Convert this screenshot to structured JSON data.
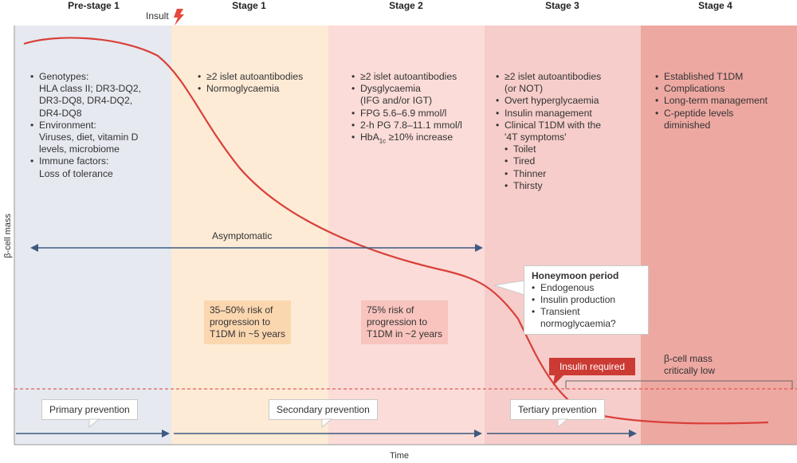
{
  "stages": [
    {
      "name": "Pre-stage 1",
      "color": "#e6e9f0"
    },
    {
      "name": "Stage 1",
      "color": "#fdebd6"
    },
    {
      "name": "Stage 2",
      "color": "#fbdcd8"
    },
    {
      "name": "Stage 3",
      "color": "#f6cdca"
    },
    {
      "name": "Stage 4",
      "color": "#eea8a2"
    }
  ],
  "insult_label": "Insult",
  "prestage_items": [
    "Genotypes:",
    "HLA class II; DR3-DQ2,",
    "DR3-DQ8, DR4-DQ2,",
    "DR4-DQ8",
    "Environment:",
    "Viruses, diet, vitamin D",
    "levels, microbiome",
    "Immune factors:",
    "Loss of tolerance"
  ],
  "stage1_items": [
    "≥2 islet autoantibodies",
    "Normoglycaemia"
  ],
  "stage2_items": [
    "≥2 islet autoantibodies",
    "Dysglycaemia",
    "(IFG and/or IGT)",
    "FPG 5.6–6.9 mmol/l",
    "2-h PG 7.8–11.1 mmol/l",
    "HbA",
    "1c",
    " ≥10% increase"
  ],
  "stage3_items": [
    "≥2 islet autoantibodies",
    "(or NOT)",
    "Overt hyperglycaemia",
    "Insulin management",
    "Clinical T1DM with the",
    "'4T symptoms'",
    "Toilet",
    "Tired",
    "Thinner",
    "Thirsty"
  ],
  "stage4_items": [
    "Established T1DM",
    "Complications",
    "Long-term management",
    "C-peptide levels",
    "diminished"
  ],
  "asymptomatic_label": "Asymptomatic",
  "risk1": [
    "35–50% risk of",
    "progression to",
    "T1DM in ~5 years"
  ],
  "risk2": [
    "75% risk of",
    "progression to",
    "T1DM in ~2 years"
  ],
  "honeymoon": {
    "title": "Honeymoon period",
    "items": [
      "Endogenous",
      "Insulin production",
      "Transient",
      "normoglycaemia?"
    ]
  },
  "insulin_required_label": "Insulin required",
  "critical_label": [
    "β-cell mass",
    "critically low"
  ],
  "prevention": {
    "primary": "Primary prevention",
    "secondary": "Secondary prevention",
    "tertiary": "Tertiary prevention"
  },
  "y_axis_label": "β-cell mass",
  "x_axis_label": "Time",
  "colors": {
    "curve": "#d9403a",
    "arrow": "#3d5a80",
    "insulin_badge": "#cc3a34",
    "insult_bolt": "#e5483c"
  }
}
